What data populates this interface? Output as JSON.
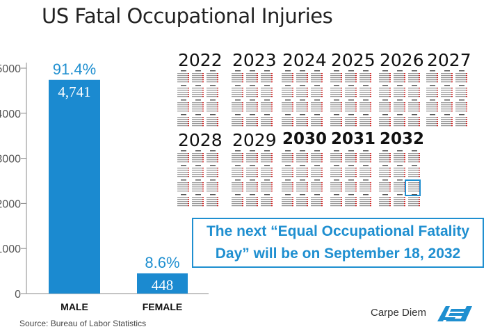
{
  "title": "US Fatal Occupational Injuries",
  "source": "Source: Bureau of Labor Statistics",
  "credit": "Carpe Diem",
  "logo_text": "AEI",
  "colors": {
    "accent": "#1f8fd0",
    "bar": "#1b8ad0",
    "calendar_red": "#d02020"
  },
  "chart_data": {
    "type": "bar",
    "categories": [
      "MALE",
      "FEMALE"
    ],
    "values": [
      4741,
      448
    ],
    "value_labels": [
      "4,741",
      "448"
    ],
    "percent_labels": [
      "91.4%",
      "8.6%"
    ],
    "ylim": [
      0,
      5000
    ],
    "yticks": [
      0,
      1000,
      2000,
      3000,
      4000,
      5000
    ],
    "ytick_labels": [
      "0",
      "1000",
      "2000",
      "3000",
      "4000",
      "5000"
    ],
    "grid": false
  },
  "calendar": {
    "years": [
      "2022",
      "2023",
      "2024",
      "2025",
      "2026",
      "2027",
      "2028",
      "2029",
      "2030",
      "2031",
      "2032"
    ],
    "highlight_year": "2032",
    "highlight_month": "September"
  },
  "callout": {
    "line1": "The next “Equal Occupational Fatality",
    "line2": "Day” will be on September 18, 2032"
  }
}
